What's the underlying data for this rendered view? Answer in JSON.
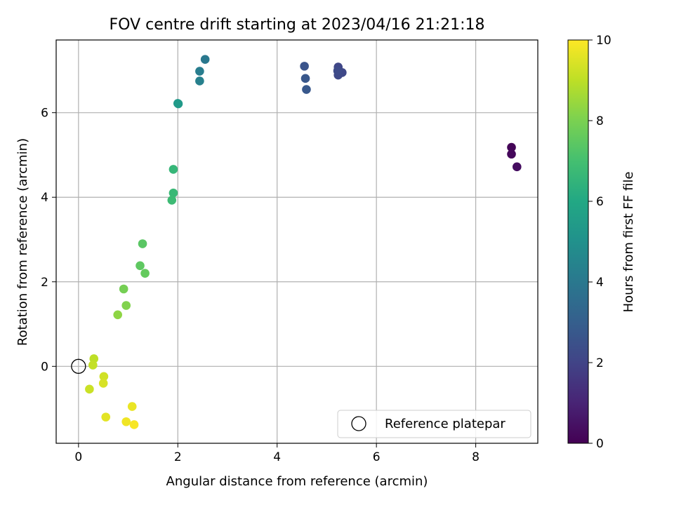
{
  "chart_data": {
    "type": "scatter",
    "title": "FOV centre drift starting at 2023/04/16 21:21:18",
    "xlabel": "Angular distance from reference (arcmin)",
    "ylabel": "Rotation from reference (arcmin)",
    "xlim": [
      -0.45,
      9.25
    ],
    "ylim": [
      -1.82,
      7.72
    ],
    "xticks": [
      0,
      2,
      4,
      6,
      8
    ],
    "yticks": [
      0,
      2,
      4,
      6
    ],
    "grid": true,
    "colorbar": {
      "label": "Hours from first FF file",
      "range": [
        0,
        10
      ],
      "ticks": [
        0,
        2,
        4,
        6,
        8,
        10
      ],
      "colormap": "viridis"
    },
    "legend": {
      "position": "lower right",
      "entries": [
        "Reference platepar"
      ]
    },
    "reference_point": {
      "x": 0,
      "y": 0
    },
    "points": [
      {
        "x": 8.72,
        "y": 5.18,
        "hours": 0.1
      },
      {
        "x": 8.72,
        "y": 5.02,
        "hours": 0.2
      },
      {
        "x": 8.83,
        "y": 4.72,
        "hours": 0.35
      },
      {
        "x": 5.23,
        "y": 7.08,
        "hours": 2.1
      },
      {
        "x": 5.31,
        "y": 6.95,
        "hours": 2.15
      },
      {
        "x": 5.23,
        "y": 6.89,
        "hours": 2.2
      },
      {
        "x": 5.22,
        "y": 6.99,
        "hours": 2.25
      },
      {
        "x": 4.55,
        "y": 7.1,
        "hours": 2.6
      },
      {
        "x": 4.57,
        "y": 6.81,
        "hours": 2.7
      },
      {
        "x": 4.59,
        "y": 6.55,
        "hours": 2.75
      },
      {
        "x": 2.55,
        "y": 7.26,
        "hours": 4.0
      },
      {
        "x": 2.44,
        "y": 6.98,
        "hours": 4.2
      },
      {
        "x": 2.44,
        "y": 6.75,
        "hours": 4.3
      },
      {
        "x": 2.0,
        "y": 6.22,
        "hours": 5.3
      },
      {
        "x": 2.01,
        "y": 6.21,
        "hours": 5.4
      },
      {
        "x": 1.91,
        "y": 4.66,
        "hours": 6.6
      },
      {
        "x": 1.91,
        "y": 4.1,
        "hours": 6.7
      },
      {
        "x": 1.88,
        "y": 3.93,
        "hours": 6.8
      },
      {
        "x": 1.29,
        "y": 2.9,
        "hours": 7.4
      },
      {
        "x": 1.24,
        "y": 2.38,
        "hours": 7.5
      },
      {
        "x": 1.34,
        "y": 2.2,
        "hours": 7.6
      },
      {
        "x": 0.91,
        "y": 1.83,
        "hours": 7.9
      },
      {
        "x": 0.96,
        "y": 1.44,
        "hours": 8.1
      },
      {
        "x": 0.79,
        "y": 1.22,
        "hours": 8.3
      },
      {
        "x": 0.31,
        "y": 0.18,
        "hours": 9.0
      },
      {
        "x": 0.29,
        "y": 0.03,
        "hours": 9.1
      },
      {
        "x": 0.22,
        "y": -0.54,
        "hours": 9.2
      },
      {
        "x": 0.51,
        "y": -0.24,
        "hours": 9.3
      },
      {
        "x": 0.5,
        "y": -0.4,
        "hours": 9.4
      },
      {
        "x": 0.55,
        "y": -1.2,
        "hours": 9.6
      },
      {
        "x": 1.08,
        "y": -0.95,
        "hours": 9.7
      },
      {
        "x": 0.96,
        "y": -1.31,
        "hours": 9.8
      },
      {
        "x": 1.12,
        "y": -1.38,
        "hours": 9.9
      }
    ]
  }
}
